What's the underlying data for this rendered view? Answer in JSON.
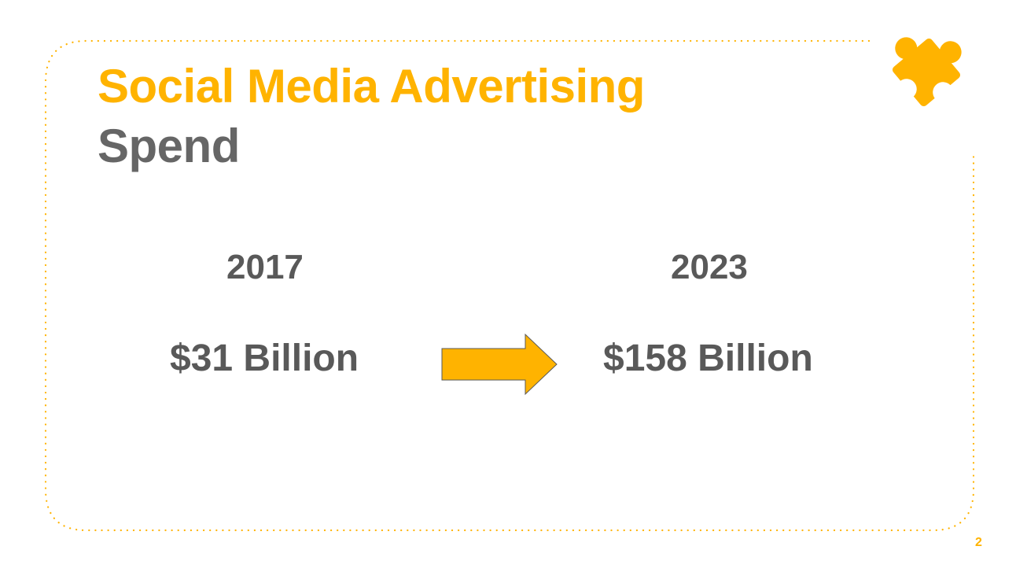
{
  "slide": {
    "title_line1": "Social Media Advertising",
    "title_line2": "Spend",
    "page_number": "2"
  },
  "comparison": {
    "from": {
      "year": "2017",
      "amount": "$31 Billion"
    },
    "to": {
      "year": "2023",
      "amount": "$158 Billion"
    }
  },
  "icons": {
    "decoration": "puzzle-piece-icon",
    "transition": "right-arrow-icon"
  },
  "colors": {
    "accent": "#FFB300",
    "text_dark": "#595959",
    "title_gray": "#666666",
    "background": "#FFFFFF"
  }
}
